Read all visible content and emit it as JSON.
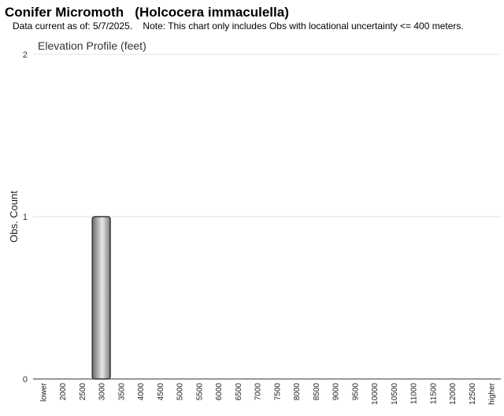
{
  "chart_data": {
    "type": "bar",
    "title": "Conifer Micromoth   (Holcocera immaculella)",
    "subtitle": "Data current as of: 5/7/2025.    Note: This chart only includes Obs with locational uncertainty <= 400 meters.",
    "chart_title": "Elevation Profile (feet)",
    "y_label": "Obs. Count",
    "categories": [
      "lower",
      "2000",
      "2500",
      "3000",
      "3500",
      "4000",
      "4500",
      "5000",
      "5500",
      "6000",
      "6500",
      "7000",
      "7500",
      "8000",
      "8500",
      "9000",
      "9500",
      "10000",
      "10500",
      "11000",
      "11500",
      "12000",
      "12500",
      "higher"
    ],
    "values": [
      0,
      0,
      0,
      1,
      0,
      0,
      0,
      0,
      0,
      0,
      0,
      0,
      0,
      0,
      0,
      0,
      0,
      0,
      0,
      0,
      0,
      0,
      0,
      0
    ],
    "color": "#e8e8e8",
    "ylim": [
      0,
      2
    ],
    "yticks": [
      0,
      1,
      2
    ],
    "grid": true
  }
}
